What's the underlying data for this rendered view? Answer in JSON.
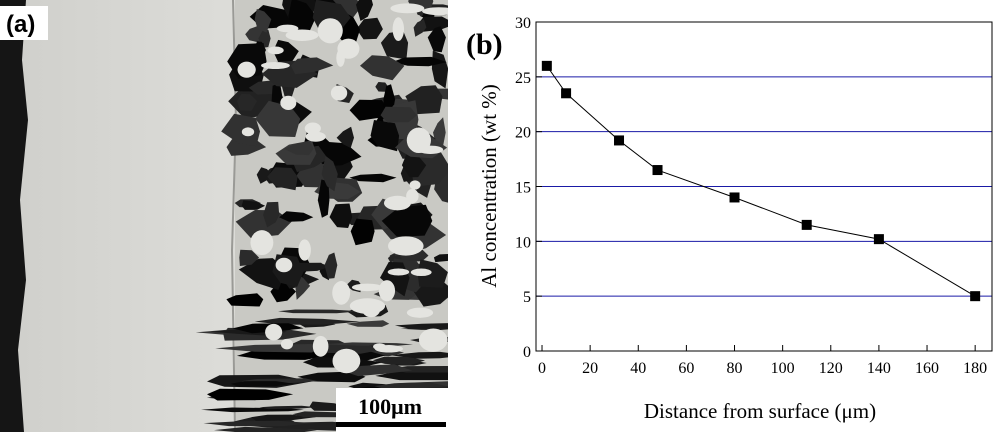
{
  "micrograph": {
    "label": "(a)",
    "scale_bar": "100μm"
  },
  "chart_data": {
    "type": "line",
    "label": "(b)",
    "x_label": "Distance from surface (μm)",
    "y_label": "Al concentration (wt %)",
    "x": [
      2,
      10,
      32,
      48,
      80,
      110,
      140,
      180
    ],
    "series": [
      {
        "color": "#000000",
        "values": [
          26,
          23.5,
          19.2,
          16.5,
          14,
          11.5,
          10.2,
          5
        ]
      }
    ],
    "xlim": [
      -2.5,
      187
    ],
    "xticks": [
      0,
      20,
      40,
      60,
      80,
      100,
      120,
      140,
      160,
      180
    ],
    "ylim": [
      0,
      30
    ],
    "yticks": [
      0,
      5,
      10,
      15,
      20,
      25,
      30
    ],
    "grid": true,
    "grid_color": "#1a1aa6"
  }
}
